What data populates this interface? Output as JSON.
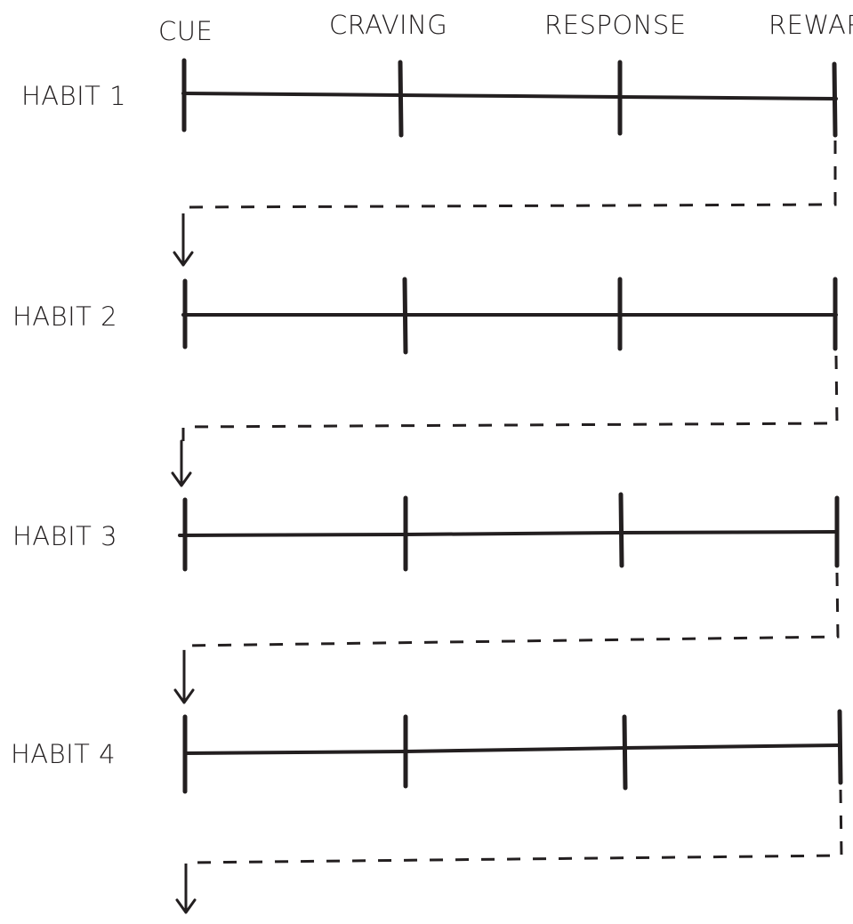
{
  "stages": [
    "CUE",
    "CRAVING",
    "RESPONSE",
    "REWARD"
  ],
  "habits": [
    "HABIT 1",
    "HABIT 2",
    "HABIT 3",
    "HABIT 4"
  ],
  "colors": {
    "ink": "#231f20",
    "background": "#ffffff"
  }
}
